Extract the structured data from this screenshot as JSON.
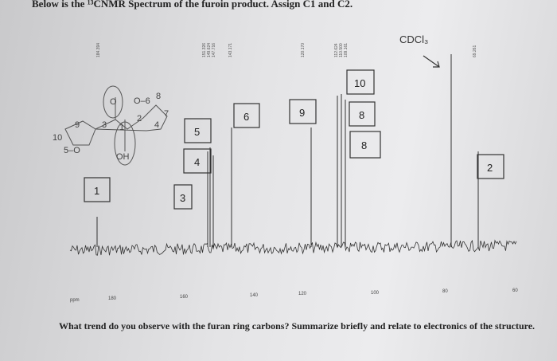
{
  "header": {
    "title": "Below is the ¹³CNMR Spectrum of the furoin product. Assign C1 and C2."
  },
  "peak_labels": [
    "184.394",
    "151.326",
    "149.624",
    "147.716",
    "143.171",
    "120.170",
    "112.624",
    "110.500",
    "109.161",
    "69.261"
  ],
  "axis": {
    "unit": "ppm",
    "ticks": [
      "180",
      "160",
      "140",
      "120",
      "100",
      "80",
      "60"
    ]
  },
  "solvent": "CDCl₃",
  "assignments": [
    "1",
    "3",
    "4",
    "5",
    "6",
    "9",
    "8",
    "10",
    "8",
    "2"
  ],
  "structure": {
    "labels": [
      "O",
      "O–6",
      "8",
      "7",
      "4",
      "2",
      "1",
      "3",
      "9",
      "10",
      "5–O",
      "OH"
    ]
  },
  "question": "What trend do you observe with the furan ring carbons? Summarize briefly and relate to electronics of the structure."
}
